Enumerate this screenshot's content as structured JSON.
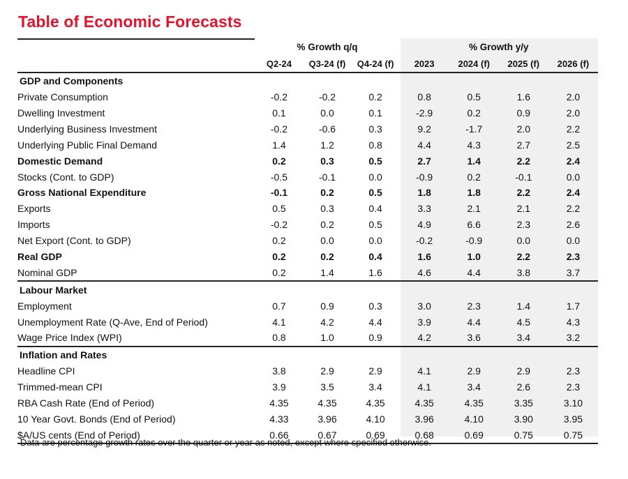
{
  "title": "Table of Economic Forecasts",
  "header": {
    "group_qq": "% Growth q/q",
    "group_yy": "% Growth y/y",
    "columns": [
      "Q2-24",
      "Q3-24 (f)",
      "Q4-24 (f)",
      "2023",
      "2024 (f)",
      "2025 (f)",
      "2026 (f)"
    ]
  },
  "sections": [
    {
      "name": "GDP and Components",
      "rows": [
        {
          "label": "Private Consumption",
          "values": [
            "-0.2",
            "-0.2",
            "0.2",
            "0.8",
            "0.5",
            "1.6",
            "2.0"
          ]
        },
        {
          "label": "Dwelling Investment",
          "values": [
            "0.1",
            "0.0",
            "0.1",
            "-2.9",
            "0.2",
            "0.9",
            "2.0"
          ]
        },
        {
          "label": "Underlying Business Investment",
          "values": [
            "-0.2",
            "-0.6",
            "0.3",
            "9.2",
            "-1.7",
            "2.0",
            "2.2"
          ]
        },
        {
          "label": "Underlying Public Final Demand",
          "values": [
            "1.4",
            "1.2",
            "0.8",
            "4.4",
            "4.3",
            "2.7",
            "2.5"
          ]
        },
        {
          "label": "Domestic Demand",
          "values": [
            "0.2",
            "0.3",
            "0.5",
            "2.7",
            "1.4",
            "2.2",
            "2.4"
          ]
        },
        {
          "label": "Stocks (Cont. to GDP)",
          "values": [
            "-0.5",
            "-0.1",
            "0.0",
            "-0.9",
            "0.2",
            "-0.1",
            "0.0"
          ]
        },
        {
          "label": "Gross National Expenditure",
          "values": [
            "-0.1",
            "0.2",
            "0.5",
            "1.8",
            "1.8",
            "2.2",
            "2.4"
          ]
        },
        {
          "label": "Exports",
          "values": [
            "0.5",
            "0.3",
            "0.4",
            "3.3",
            "2.1",
            "2.1",
            "2.2"
          ]
        },
        {
          "label": "Imports",
          "values": [
            "-0.2",
            "0.2",
            "0.5",
            "4.9",
            "6.6",
            "2.3",
            "2.6"
          ]
        },
        {
          "label": "Net Export (Cont. to GDP)",
          "values": [
            "0.2",
            "0.0",
            "0.0",
            "-0.2",
            "-0.9",
            "0.0",
            "0.0"
          ]
        },
        {
          "label": "Real GDP",
          "values": [
            "0.2",
            "0.2",
            "0.4",
            "1.6",
            "1.0",
            "2.2",
            "2.3"
          ]
        },
        {
          "label": "Nominal GDP",
          "values": [
            "0.2",
            "1.4",
            "1.6",
            "4.6",
            "4.4",
            "3.8",
            "3.7"
          ]
        }
      ]
    },
    {
      "name": "Labour Market",
      "rows": [
        {
          "label": "Employment",
          "values": [
            "0.7",
            "0.9",
            "0.3",
            "3.0",
            "2.3",
            "1.4",
            "1.7"
          ]
        },
        {
          "label": "Unemployment Rate (Q-Ave, End of Period)",
          "values": [
            "4.1",
            "4.2",
            "4.4",
            "3.9",
            "4.4",
            "4.5",
            "4.3"
          ]
        },
        {
          "label": "Wage Price Index (WPI)",
          "values": [
            "0.8",
            "1.0",
            "0.9",
            "4.2",
            "3.6",
            "3.4",
            "3.2"
          ]
        }
      ]
    },
    {
      "name": "Inflation and Rates",
      "rows": [
        {
          "label": "Headline CPI",
          "values": [
            "3.8",
            "2.9",
            "2.9",
            "4.1",
            "2.9",
            "2.9",
            "2.3"
          ]
        },
        {
          "label": "Trimmed-mean CPI",
          "values": [
            "3.9",
            "3.5",
            "3.4",
            "4.1",
            "3.4",
            "2.6",
            "2.3"
          ]
        },
        {
          "label": "RBA Cash Rate (End of Period)",
          "values": [
            "4.35",
            "4.35",
            "4.35",
            "4.35",
            "4.35",
            "3.35",
            "3.10"
          ]
        },
        {
          "label": "10 Year Govt. Bonds (End of Period)",
          "values": [
            "4.33",
            "3.96",
            "4.10",
            "3.96",
            "4.10",
            "3.90",
            "3.95"
          ]
        },
        {
          "label": "$A/US cents (End of Period)",
          "values": [
            "0.66",
            "0.67",
            "0.69",
            "0.68",
            "0.69",
            "0.75",
            "0.75"
          ]
        }
      ]
    }
  ],
  "note": "Data are percentage growth rates over the quarter or year as noted, except where specified otherwise.",
  "colors": {
    "title": "#e8112d",
    "shade": "#f0f0f0",
    "rule": "#222222"
  }
}
